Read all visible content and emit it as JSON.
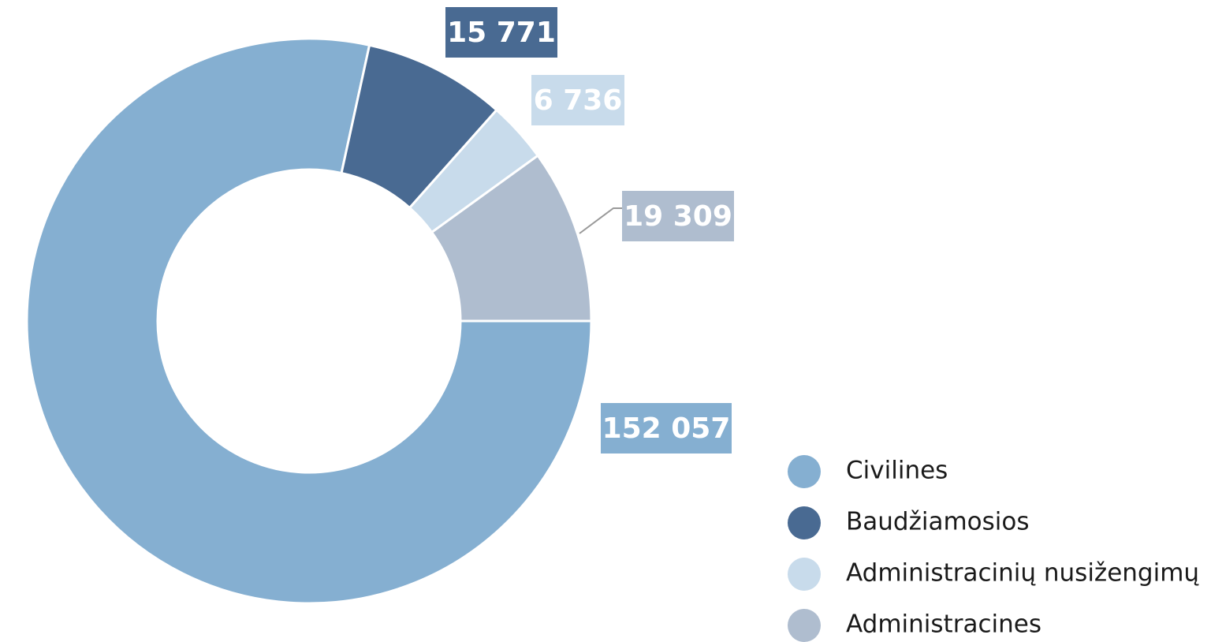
{
  "chart_data": {
    "type": "donut",
    "categories": [
      "Civilines",
      "Baudžiamosios",
      "Administracinių nusižengimų",
      "Administracines"
    ],
    "values": [
      152057,
      15771,
      6736,
      19309
    ],
    "value_labels": [
      "152 057",
      "15 771",
      "6 736",
      "19 309"
    ],
    "colors": [
      "#85afd1",
      "#496a92",
      "#c8dbeb",
      "#afbdcf"
    ],
    "legend": "bottom-right"
  }
}
